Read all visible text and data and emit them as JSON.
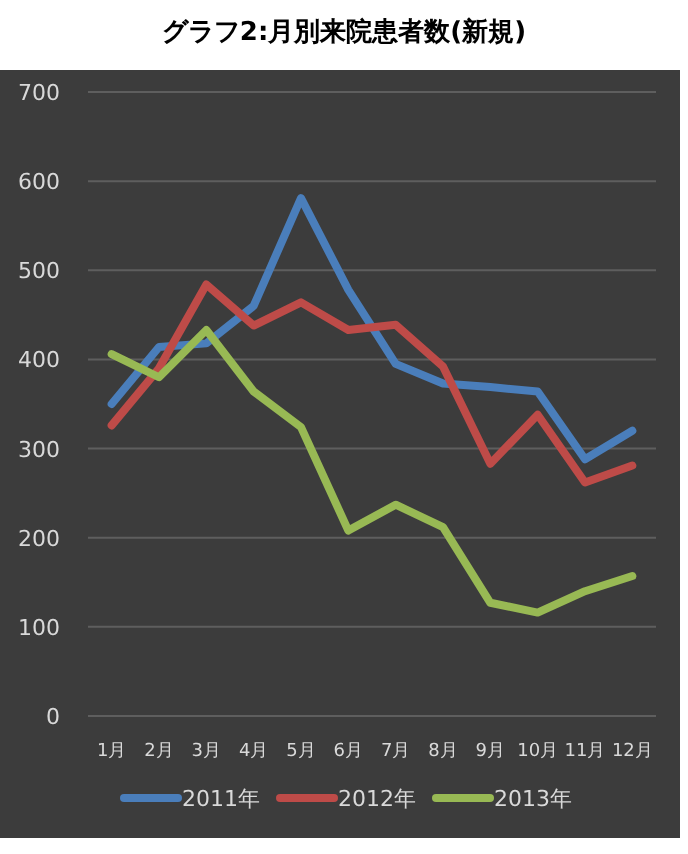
{
  "chart_data": {
    "type": "line",
    "title": "グラフ2:月別来院患者数(新規)",
    "categories": [
      "1月",
      "2月",
      "3月",
      "4月",
      "5月",
      "6月",
      "7月",
      "8月",
      "9月",
      "10月",
      "11月",
      "12月"
    ],
    "series": [
      {
        "name": "2011年",
        "color": "#4a7ebb",
        "values": [
          350,
          414,
          418,
          460,
          581,
          478,
          395,
          373,
          369,
          364,
          288,
          320
        ]
      },
      {
        "name": "2012年",
        "color": "#be4b48",
        "values": [
          326,
          390,
          484,
          438,
          464,
          433,
          439,
          392,
          283,
          338,
          262,
          281
        ]
      },
      {
        "name": "2013年",
        "color": "#98b954",
        "values": [
          406,
          380,
          433,
          364,
          324,
          208,
          237,
          212,
          127,
          116,
          140,
          157
        ]
      }
    ],
    "ylim": [
      0,
      700
    ],
    "yticks": [
      0,
      100,
      200,
      300,
      400,
      500,
      600,
      700
    ],
    "grid": "y",
    "legend": "bottom",
    "marker": "none",
    "line_style": "solid"
  }
}
